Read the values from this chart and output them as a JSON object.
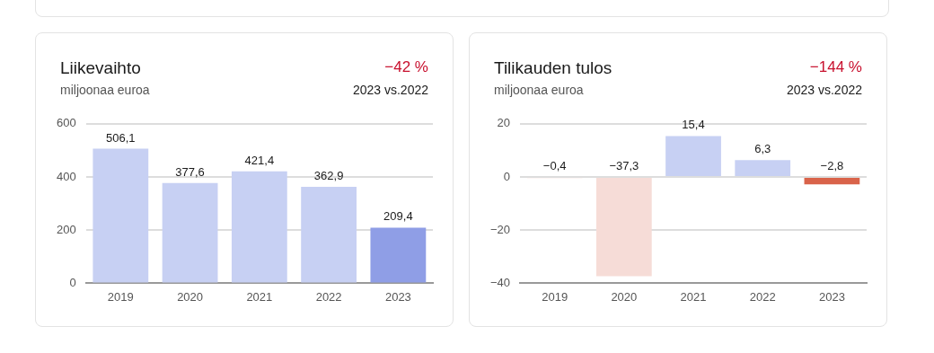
{
  "chart_data": [
    {
      "type": "bar",
      "title": "Liikevaihto",
      "subtitle": "miljoonaa euroa",
      "annotations": [
        "−42 %",
        "2023 vs.2022"
      ],
      "categories": [
        "2019",
        "2020",
        "2021",
        "2022",
        "2023"
      ],
      "values": [
        506.1,
        377.6,
        421.4,
        362.9,
        209.4
      ],
      "value_labels": [
        "506,1",
        "377,6",
        "421,4",
        "362,9",
        "209,4"
      ],
      "colors": [
        "#c7d0f3",
        "#c7d0f3",
        "#c7d0f3",
        "#c7d0f3",
        "#8f9ee6"
      ],
      "ylim": [
        0,
        600
      ],
      "yticks": [
        0,
        200,
        400,
        600
      ],
      "grid": "y",
      "legend": false
    },
    {
      "type": "bar",
      "title": "Tilikauden tulos",
      "subtitle": "miljoonaa euroa",
      "annotations": [
        "−144 %",
        "2023 vs.2022"
      ],
      "categories": [
        "2019",
        "2020",
        "2021",
        "2022",
        "2023"
      ],
      "values": [
        -0.4,
        -37.3,
        15.4,
        6.3,
        -2.8
      ],
      "value_labels": [
        "−0,4",
        "−37,3",
        "15,4",
        "6,3",
        "−2,8"
      ],
      "colors": [
        "#f6dcd7",
        "#f6dcd7",
        "#c7d0f3",
        "#c7d0f3",
        "#d9634a"
      ],
      "ylim": [
        -40,
        20
      ],
      "yticks": [
        {
          "value": -40,
          "label": "−40"
        },
        {
          "value": -20,
          "label": "−20"
        },
        0,
        20
      ],
      "grid": "y",
      "legend": false
    }
  ]
}
